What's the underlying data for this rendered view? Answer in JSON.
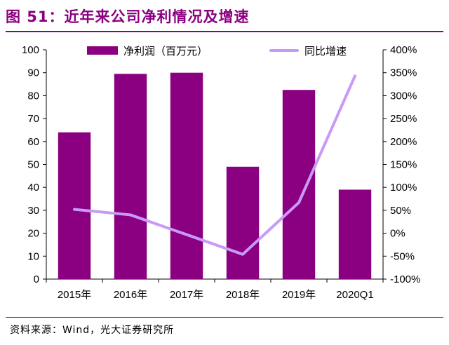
{
  "header": {
    "title": "图 51：近年来公司净利情况及增速"
  },
  "footer": {
    "source": "资料来源：Wind，光大证券研究所"
  },
  "chart_data": {
    "type": "bar",
    "categories": [
      "2015年",
      "2016年",
      "2017年",
      "2018年",
      "2019年",
      "2020Q1"
    ],
    "series": [
      {
        "name": "净利润（百万元）",
        "type": "bar",
        "axis": "left",
        "color": "#8B0080",
        "values": [
          64,
          89.5,
          90,
          49,
          82.5,
          39
        ]
      },
      {
        "name": "同比增速",
        "type": "line",
        "axis": "right",
        "color": "#C89AF7",
        "values": [
          52,
          40,
          -3,
          -46,
          67,
          343
        ]
      }
    ],
    "y_left": {
      "min": 0,
      "max": 100,
      "step": 10,
      "ticks": [
        "0",
        "10",
        "20",
        "30",
        "40",
        "50",
        "60",
        "70",
        "80",
        "90",
        "100"
      ]
    },
    "y_right": {
      "min": -100,
      "max": 400,
      "step": 50,
      "ticks": [
        "-100%",
        "-50%",
        "0%",
        "50%",
        "100%",
        "150%",
        "200%",
        "250%",
        "300%",
        "350%",
        "400%"
      ]
    },
    "legend_position": "top",
    "grid": false
  }
}
